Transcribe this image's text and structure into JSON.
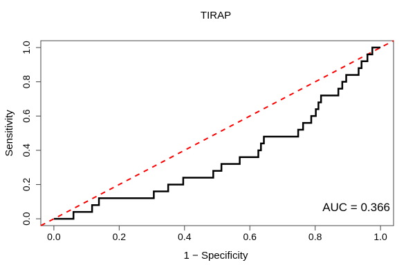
{
  "chart_data": {
    "type": "line",
    "subtype": "roc-step-curve",
    "title": "TIRAP",
    "xlabel": "1 − Specificity",
    "ylabel": "Sensitivity",
    "xlim": [
      0,
      1
    ],
    "ylim": [
      0,
      1
    ],
    "axis_expansion": 0.04,
    "grid": false,
    "x_tick_values": [
      0.0,
      0.2,
      0.4,
      0.6,
      0.8,
      1.0
    ],
    "x_tick_labels": [
      "0.0",
      "0.2",
      "0.4",
      "0.6",
      "0.8",
      "1.0"
    ],
    "y_tick_values": [
      0.0,
      0.2,
      0.4,
      0.6,
      0.8,
      1.0
    ],
    "y_tick_labels": [
      "0.0",
      "0.2",
      "0.4",
      "0.6",
      "0.8",
      "1.0"
    ],
    "annotation": "AUC = 0.366",
    "auc": 0.366,
    "series": [
      {
        "name": "ROC curve",
        "color": "#000000",
        "line_style": "solid",
        "line_width": 2.5,
        "step_corners": [
          [
            0.0,
            0.0
          ],
          [
            0.06,
            0.04
          ],
          [
            0.117,
            0.08
          ],
          [
            0.138,
            0.12
          ],
          [
            0.306,
            0.16
          ],
          [
            0.35,
            0.2
          ],
          [
            0.396,
            0.24
          ],
          [
            0.488,
            0.28
          ],
          [
            0.513,
            0.32
          ],
          [
            0.569,
            0.36
          ],
          [
            0.626,
            0.4
          ],
          [
            0.634,
            0.44
          ],
          [
            0.643,
            0.48
          ],
          [
            0.748,
            0.52
          ],
          [
            0.763,
            0.56
          ],
          [
            0.788,
            0.6
          ],
          [
            0.802,
            0.64
          ],
          [
            0.81,
            0.68
          ],
          [
            0.818,
            0.72
          ],
          [
            0.871,
            0.76
          ],
          [
            0.883,
            0.8
          ],
          [
            0.895,
            0.84
          ],
          [
            0.933,
            0.88
          ],
          [
            0.942,
            0.92
          ],
          [
            0.96,
            0.96
          ],
          [
            0.975,
            1.0
          ],
          [
            1.0,
            1.0
          ]
        ]
      },
      {
        "name": "chance diagonal",
        "color": "#FF0000",
        "line_style": "dashed",
        "line_width": 2,
        "points": [
          [
            0,
            0
          ],
          [
            1,
            1
          ]
        ]
      }
    ]
  }
}
